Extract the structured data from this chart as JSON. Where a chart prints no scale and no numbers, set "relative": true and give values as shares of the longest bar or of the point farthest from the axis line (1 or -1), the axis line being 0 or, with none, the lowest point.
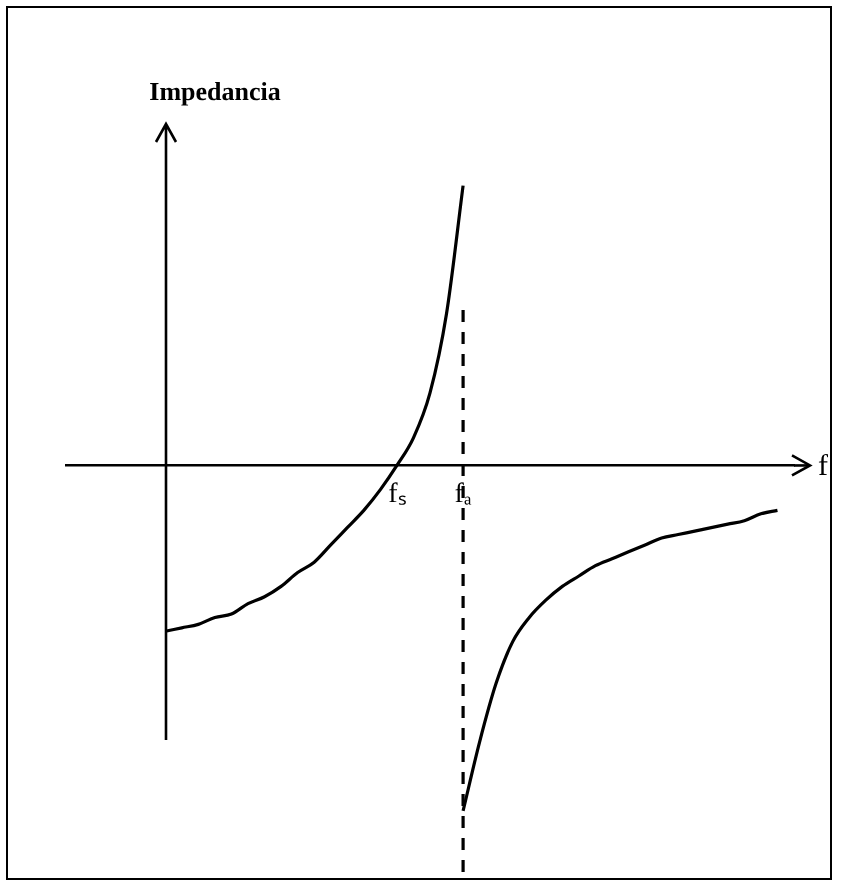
{
  "chart_data": {
    "type": "line",
    "relative": true,
    "xlabel": "f",
    "ylabel": "Impedancia",
    "marker": "none",
    "line_style": "solid",
    "categories": [
      null,
      null,
      null,
      null,
      null,
      null,
      null,
      null,
      null,
      null,
      null,
      null,
      null,
      null,
      null,
      null,
      null,
      null,
      null,
      null,
      "fₛ",
      null,
      null,
      null,
      "fₐ",
      null,
      null,
      null,
      null,
      null,
      null,
      null,
      null,
      null,
      null,
      null,
      null,
      null,
      null,
      null,
      null,
      null,
      null,
      null,
      null
    ],
    "series": [
      {
        "color": "#000000",
        "values": [
          null,
          null,
          null,
          null,
          null,
          null,
          -0.48,
          -0.47,
          -0.46,
          -0.44,
          -0.43,
          -0.4,
          -0.38,
          -0.35,
          -0.31,
          -0.28,
          -0.23,
          -0.18,
          -0.13,
          -0.07,
          0,
          0.08,
          0.21,
          0.44,
          0.81,
          null,
          null,
          null,
          null,
          null,
          null,
          null,
          null,
          null,
          null,
          null,
          null,
          null,
          null,
          null,
          null,
          null,
          null,
          null,
          null
        ]
      },
      {
        "color": "#000000",
        "values": [
          null,
          null,
          null,
          null,
          null,
          null,
          null,
          null,
          null,
          null,
          null,
          null,
          null,
          null,
          null,
          null,
          null,
          null,
          null,
          null,
          null,
          null,
          null,
          null,
          -1.0,
          -0.8,
          -0.63,
          -0.51,
          -0.44,
          -0.39,
          -0.35,
          -0.32,
          -0.29,
          -0.27,
          -0.25,
          -0.23,
          -0.21,
          -0.2,
          -0.19,
          -0.18,
          -0.17,
          -0.16,
          -0.14,
          -0.13,
          null
        ]
      }
    ],
    "ref_lines": [
      {
        "axis": "x",
        "value": "fₐ",
        "line_style": "dashed",
        "color": "#000000"
      }
    ]
  }
}
